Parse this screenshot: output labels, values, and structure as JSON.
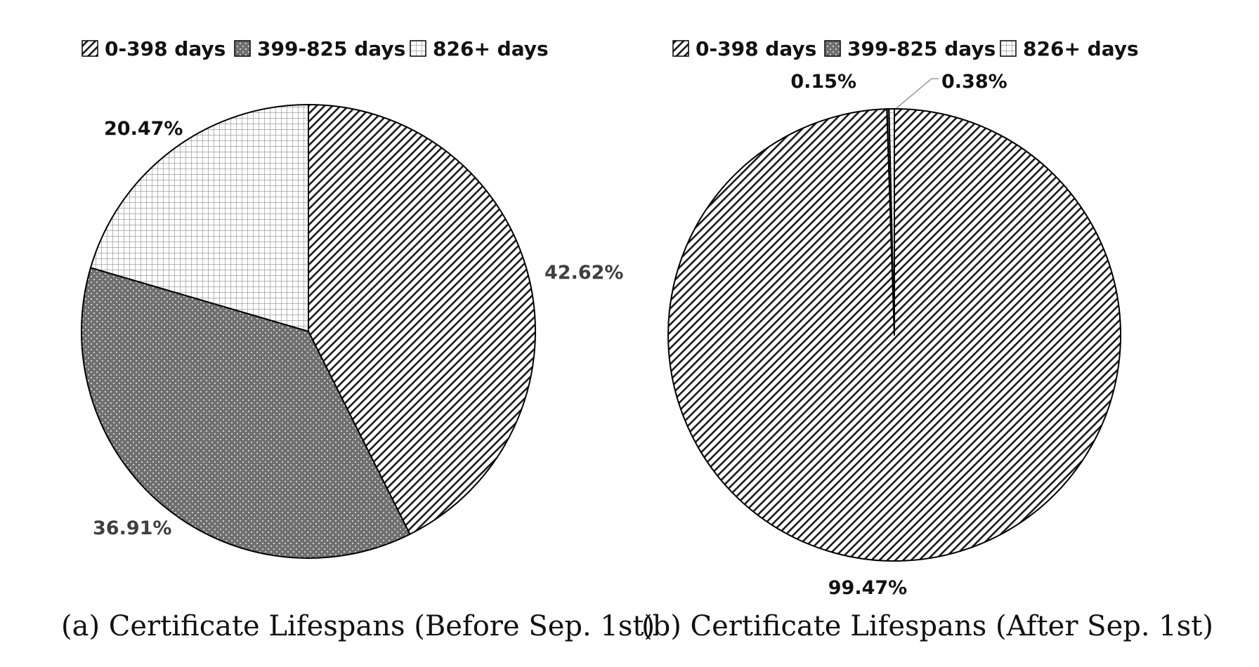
{
  "chart_data": [
    {
      "type": "pie",
      "caption": "(a) Certificate Lifespans (Before Sep. 1st)",
      "legend_position": "top",
      "categories": [
        "0-398 days",
        "399-825 days",
        "826+ days"
      ],
      "values": [
        42.62,
        36.91,
        20.47
      ],
      "labels": [
        "42.62%",
        "36.91%",
        "20.47%"
      ],
      "patterns": [
        "diagonal-hatch",
        "dots-dark",
        "grid"
      ],
      "start_angle_deg": 0,
      "direction": "clockwise"
    },
    {
      "type": "pie",
      "caption": "(b) Certificate Lifespans (After Sep. 1st)",
      "legend_position": "top",
      "categories": [
        "0-398 days",
        "399-825 days",
        "826+ days"
      ],
      "values": [
        99.47,
        0.15,
        0.38
      ],
      "labels": [
        "99.47%",
        "0.15%",
        "0.38%"
      ],
      "patterns": [
        "diagonal-hatch",
        "dots-dark",
        "grid"
      ],
      "start_angle_deg": 0,
      "direction": "clockwise"
    }
  ],
  "colors": {
    "stroke": "#000000",
    "hatch": "#1a1a1a",
    "dots_background": "#6f6f6f",
    "dots": "#d9d9d9",
    "grid": "#8a8a8a",
    "label_dark": "#111111",
    "label_gray": "#404040"
  }
}
